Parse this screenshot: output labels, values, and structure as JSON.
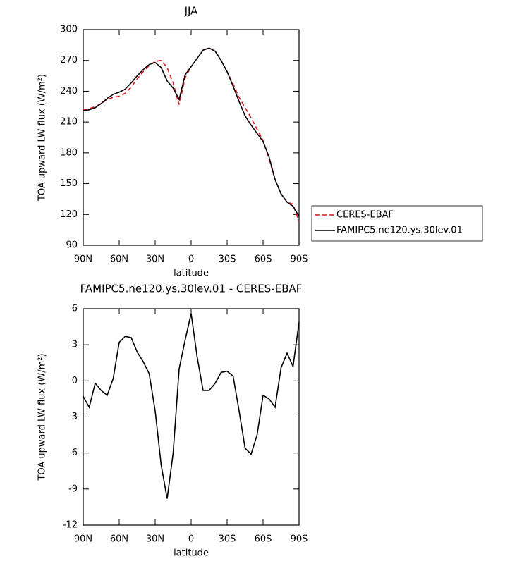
{
  "chart_data": [
    {
      "type": "line",
      "title": "JJA",
      "xlabel": "latitude",
      "ylabel": "TOA upward LW flux (W/m²)",
      "x": [
        90,
        85,
        80,
        75,
        70,
        65,
        60,
        55,
        50,
        45,
        40,
        35,
        30,
        25,
        20,
        15,
        10,
        5,
        0,
        -5,
        -10,
        -15,
        -20,
        -25,
        -30,
        -35,
        -40,
        -45,
        -50,
        -55,
        -60,
        -65,
        -70,
        -75,
        -80,
        -85,
        -90
      ],
      "series": [
        {
          "name": "CERES-EBAF",
          "color": "#e8141c",
          "style": "dashed",
          "values": [
            222,
            223,
            225,
            228,
            232,
            234,
            235,
            238,
            244,
            252,
            259,
            265,
            269,
            270,
            263,
            248,
            227,
            253,
            264,
            272,
            280,
            282,
            279,
            270,
            259,
            247,
            234,
            224,
            214,
            203,
            192,
            174,
            154,
            140,
            132,
            130,
            113
          ]
        },
        {
          "name": "FAMIPC5.ne120.ys.30lev.01",
          "color": "#000000",
          "style": "solid",
          "values": [
            221,
            222,
            224,
            228,
            233,
            237,
            239,
            242,
            248,
            255,
            261,
            266,
            268,
            263,
            250,
            243,
            232,
            256,
            264,
            272,
            280,
            282,
            279,
            270,
            259,
            245,
            230,
            216,
            207,
            199,
            191,
            176,
            154,
            140,
            132,
            128,
            118
          ]
        }
      ],
      "xlim": [
        90,
        -90
      ],
      "xticks": [
        {
          "value": 90,
          "label": "90N"
        },
        {
          "value": 60,
          "label": "60N"
        },
        {
          "value": 30,
          "label": "30N"
        },
        0,
        {
          "value": -30,
          "label": "30S"
        },
        {
          "value": -60,
          "label": "60S"
        },
        {
          "value": -90,
          "label": "90S"
        }
      ],
      "ylim": [
        90,
        300
      ],
      "yticks": [
        90,
        120,
        150,
        180,
        210,
        240,
        270,
        300
      ],
      "legend": "right"
    },
    {
      "type": "line",
      "title": "FAMIPC5.ne120.ys.30lev.01 - CERES-EBAF",
      "xlabel": "latitude",
      "ylabel": "TOA upward LW flux (W/m²)",
      "x": [
        90,
        85,
        80,
        75,
        70,
        65,
        60,
        55,
        50,
        45,
        40,
        35,
        30,
        25,
        20,
        15,
        10,
        5,
        0,
        -5,
        -10,
        -15,
        -20,
        -25,
        -30,
        -35,
        -40,
        -45,
        -50,
        -55,
        -60,
        -65,
        -70,
        -75,
        -80,
        -85,
        -90
      ],
      "series": [
        {
          "color": "#000000",
          "style": "solid",
          "values": [
            -1.3,
            -2.2,
            -0.2,
            -0.8,
            -1.2,
            0.2,
            3.2,
            3.7,
            3.6,
            2.4,
            1.6,
            0.6,
            -2.5,
            -7,
            -9.8,
            -6,
            1,
            3.4,
            5.6,
            2,
            -0.8,
            -0.8,
            -0.2,
            0.7,
            0.8,
            0.4,
            -2.5,
            -5.6,
            -6.1,
            -4.5,
            -1.2,
            -1.5,
            -2.2,
            1.1,
            2.3,
            1.2,
            4.9
          ]
        }
      ],
      "xlim": [
        90,
        -90
      ],
      "xticks": [
        {
          "value": 90,
          "label": "90N"
        },
        {
          "value": 60,
          "label": "60N"
        },
        {
          "value": 30,
          "label": "30N"
        },
        0,
        {
          "value": -30,
          "label": "30S"
        },
        {
          "value": -60,
          "label": "60S"
        },
        {
          "value": -90,
          "label": "90S"
        }
      ],
      "ylim": [
        -12,
        6
      ],
      "yticks": [
        -12,
        -9,
        -6,
        -3,
        0,
        3,
        6
      ]
    }
  ]
}
